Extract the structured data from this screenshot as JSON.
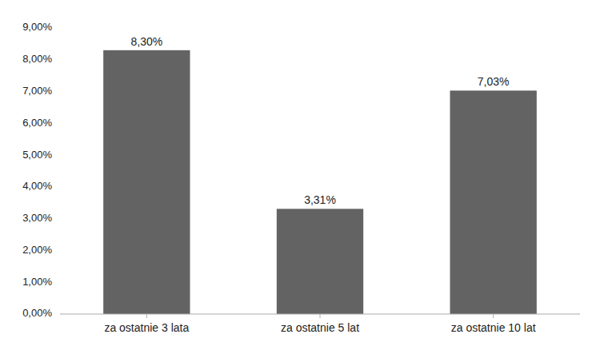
{
  "chart_data": {
    "type": "bar",
    "categories": [
      "za ostatnie 3 lata",
      "za ostatnie 5 lat",
      "za ostatnie 10 lat"
    ],
    "values": [
      0.083,
      0.0331,
      0.0703
    ],
    "value_labels": [
      "8,30%",
      "3,31%",
      "7,03%"
    ],
    "data_labels": true,
    "color": "#636363",
    "ylim": [
      0,
      0.09
    ],
    "yticks": [
      {
        "value": 0.0,
        "label": "0,00%"
      },
      {
        "value": 0.01,
        "label": "1,00%"
      },
      {
        "value": 0.02,
        "label": "2,00%"
      },
      {
        "value": 0.03,
        "label": "3,00%"
      },
      {
        "value": 0.04,
        "label": "4,00%"
      },
      {
        "value": 0.05,
        "label": "5,00%"
      },
      {
        "value": 0.06,
        "label": "6,00%"
      },
      {
        "value": 0.07,
        "label": "7,00%"
      },
      {
        "value": 0.08,
        "label": "8,00%"
      },
      {
        "value": 0.09,
        "label": "9,00%"
      }
    ],
    "grid": false
  }
}
